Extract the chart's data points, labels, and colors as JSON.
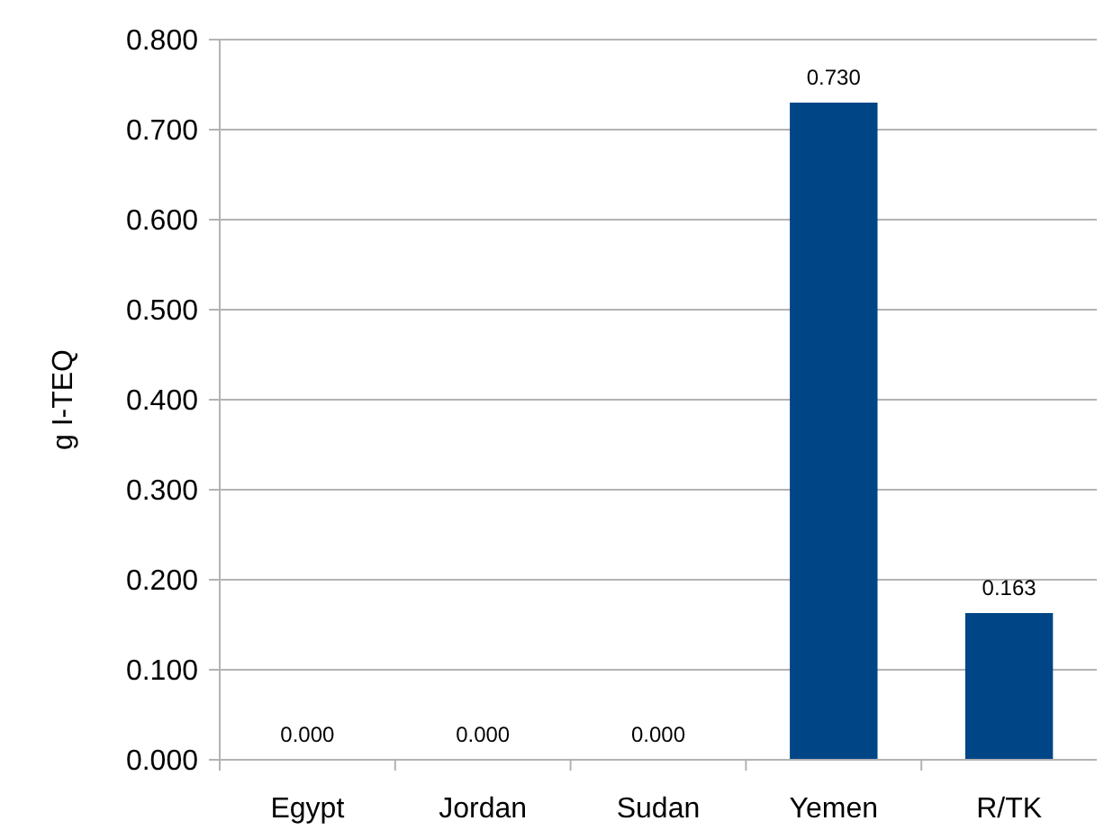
{
  "chart_data": {
    "type": "bar",
    "ylabel": "g I-TEQ",
    "categories": [
      "Egypt",
      "Jordan",
      "Sudan",
      "Yemen",
      "R/TK"
    ],
    "values": [
      0,
      0,
      0,
      0.73,
      0.163
    ],
    "value_labels": [
      "0.000",
      "0.000",
      "0.000",
      "0.730",
      "0.163"
    ],
    "color": "#004586",
    "ylim": [
      0,
      0.8
    ],
    "yticks": [
      {
        "value": 0,
        "label": "0.000"
      },
      {
        "value": 0.1,
        "label": "0.100"
      },
      {
        "value": 0.2,
        "label": "0.200"
      },
      {
        "value": 0.3,
        "label": "0.300"
      },
      {
        "value": 0.4,
        "label": "0.400"
      },
      {
        "value": 0.5,
        "label": "0.500"
      },
      {
        "value": 0.6,
        "label": "0.600"
      },
      {
        "value": 0.7,
        "label": "0.700"
      },
      {
        "value": 0.8,
        "label": "0.800"
      }
    ],
    "grid": "y"
  }
}
